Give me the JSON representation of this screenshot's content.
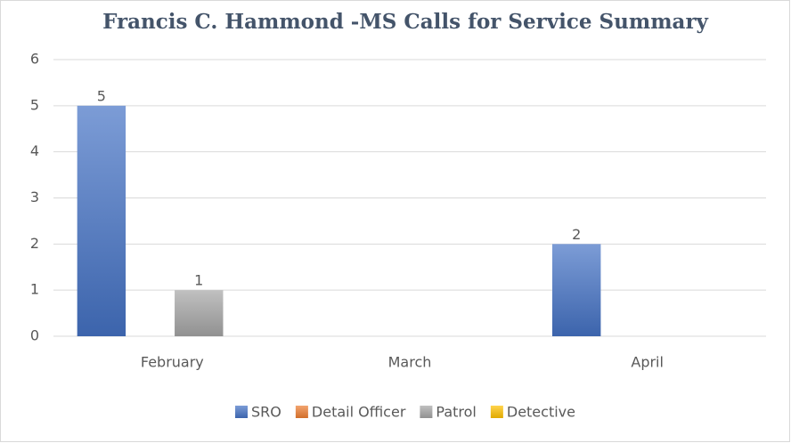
{
  "chart_data": {
    "type": "bar",
    "title": "Francis C. Hammond -MS Calls for Service Summary",
    "categories": [
      "February",
      "March",
      "April"
    ],
    "series": [
      {
        "name": "SRO",
        "color": "#4472c4",
        "values": [
          5,
          0,
          2
        ]
      },
      {
        "name": "Detail Officer",
        "color": "#ed7d31",
        "values": [
          0,
          0,
          0
        ]
      },
      {
        "name": "Patrol",
        "color": "#a5a5a5",
        "values": [
          1,
          0,
          0
        ]
      },
      {
        "name": "Detective",
        "color": "#ffc000",
        "values": [
          0,
          0,
          0
        ]
      }
    ],
    "ylim": [
      0,
      6
    ],
    "yticks": [
      0,
      1,
      2,
      3,
      4,
      5,
      6
    ],
    "grid": true,
    "legend": "bottom"
  }
}
